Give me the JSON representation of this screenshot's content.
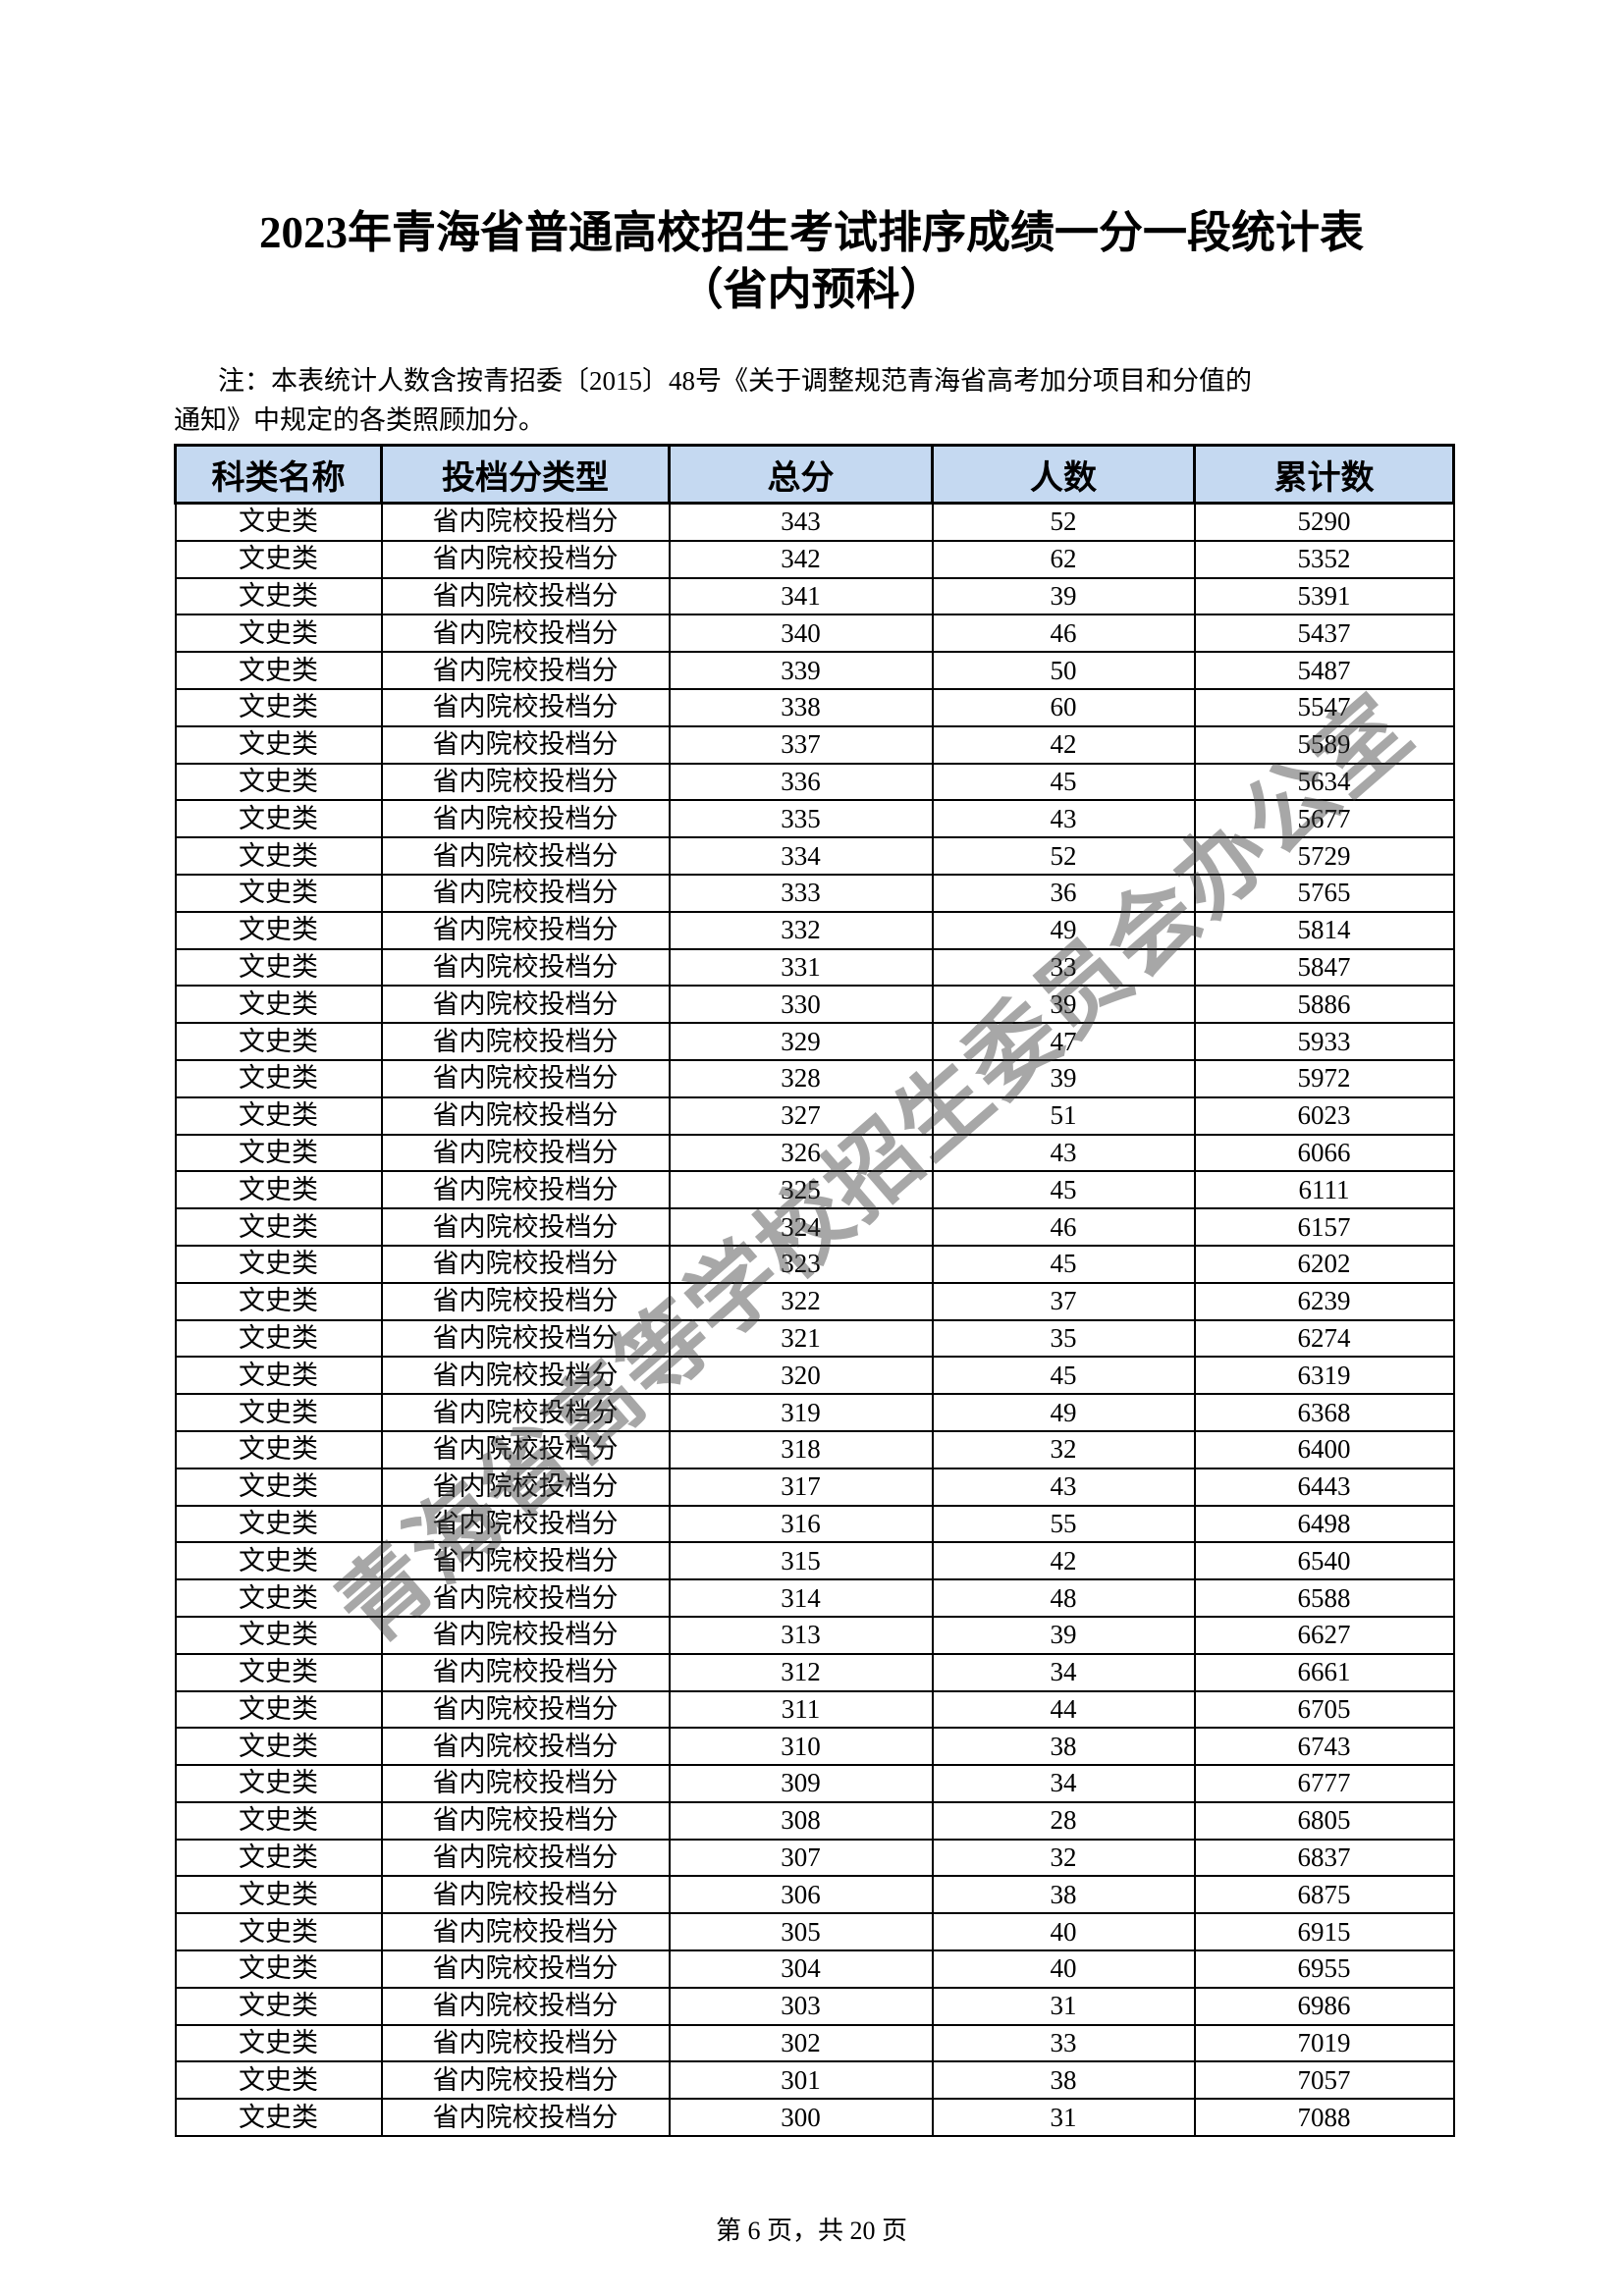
{
  "header": {
    "title": "2023年青海省普通高校招生考试排序成绩一分一段统计表",
    "subtitle": "（省内预科）"
  },
  "note": {
    "lines": [
      "注：本表统计人数含按青招委〔2015〕48号《关于调整规范青海省高考加分项目和分值的",
      "通知》中规定的各类照顾加分。"
    ]
  },
  "table": {
    "columns": [
      "科类名称",
      "投档分类型",
      "总分",
      "人数",
      "累计数"
    ],
    "rows": [
      [
        "文史类",
        "省内院校投档分",
        343,
        52,
        5290
      ],
      [
        "文史类",
        "省内院校投档分",
        342,
        62,
        5352
      ],
      [
        "文史类",
        "省内院校投档分",
        341,
        39,
        5391
      ],
      [
        "文史类",
        "省内院校投档分",
        340,
        46,
        5437
      ],
      [
        "文史类",
        "省内院校投档分",
        339,
        50,
        5487
      ],
      [
        "文史类",
        "省内院校投档分",
        338,
        60,
        5547
      ],
      [
        "文史类",
        "省内院校投档分",
        337,
        42,
        5589
      ],
      [
        "文史类",
        "省内院校投档分",
        336,
        45,
        5634
      ],
      [
        "文史类",
        "省内院校投档分",
        335,
        43,
        5677
      ],
      [
        "文史类",
        "省内院校投档分",
        334,
        52,
        5729
      ],
      [
        "文史类",
        "省内院校投档分",
        333,
        36,
        5765
      ],
      [
        "文史类",
        "省内院校投档分",
        332,
        49,
        5814
      ],
      [
        "文史类",
        "省内院校投档分",
        331,
        33,
        5847
      ],
      [
        "文史类",
        "省内院校投档分",
        330,
        39,
        5886
      ],
      [
        "文史类",
        "省内院校投档分",
        329,
        47,
        5933
      ],
      [
        "文史类",
        "省内院校投档分",
        328,
        39,
        5972
      ],
      [
        "文史类",
        "省内院校投档分",
        327,
        51,
        6023
      ],
      [
        "文史类",
        "省内院校投档分",
        326,
        43,
        6066
      ],
      [
        "文史类",
        "省内院校投档分",
        325,
        45,
        6111
      ],
      [
        "文史类",
        "省内院校投档分",
        324,
        46,
        6157
      ],
      [
        "文史类",
        "省内院校投档分",
        323,
        45,
        6202
      ],
      [
        "文史类",
        "省内院校投档分",
        322,
        37,
        6239
      ],
      [
        "文史类",
        "省内院校投档分",
        321,
        35,
        6274
      ],
      [
        "文史类",
        "省内院校投档分",
        320,
        45,
        6319
      ],
      [
        "文史类",
        "省内院校投档分",
        319,
        49,
        6368
      ],
      [
        "文史类",
        "省内院校投档分",
        318,
        32,
        6400
      ],
      [
        "文史类",
        "省内院校投档分",
        317,
        43,
        6443
      ],
      [
        "文史类",
        "省内院校投档分",
        316,
        55,
        6498
      ],
      [
        "文史类",
        "省内院校投档分",
        315,
        42,
        6540
      ],
      [
        "文史类",
        "省内院校投档分",
        314,
        48,
        6588
      ],
      [
        "文史类",
        "省内院校投档分",
        313,
        39,
        6627
      ],
      [
        "文史类",
        "省内院校投档分",
        312,
        34,
        6661
      ],
      [
        "文史类",
        "省内院校投档分",
        311,
        44,
        6705
      ],
      [
        "文史类",
        "省内院校投档分",
        310,
        38,
        6743
      ],
      [
        "文史类",
        "省内院校投档分",
        309,
        34,
        6777
      ],
      [
        "文史类",
        "省内院校投档分",
        308,
        28,
        6805
      ],
      [
        "文史类",
        "省内院校投档分",
        307,
        32,
        6837
      ],
      [
        "文史类",
        "省内院校投档分",
        306,
        38,
        6875
      ],
      [
        "文史类",
        "省内院校投档分",
        305,
        40,
        6915
      ],
      [
        "文史类",
        "省内院校投档分",
        304,
        40,
        6955
      ],
      [
        "文史类",
        "省内院校投档分",
        303,
        31,
        6986
      ],
      [
        "文史类",
        "省内院校投档分",
        302,
        33,
        7019
      ],
      [
        "文史类",
        "省内院校投档分",
        301,
        38,
        7057
      ],
      [
        "文史类",
        "省内院校投档分",
        300,
        31,
        7088
      ]
    ]
  },
  "watermark": "青海省高等学校招生委员会办公室",
  "footer": "第 6 页，共 20 页"
}
